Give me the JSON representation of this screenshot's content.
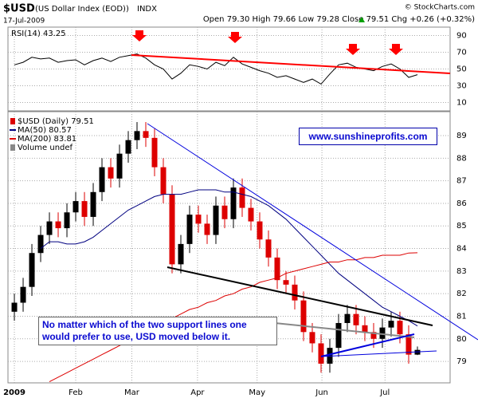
{
  "header": {
    "symbol": "$USD",
    "name": "(US Dollar Index (EOD))",
    "exchange": "INDX",
    "date": "17-Jul-2009",
    "copyright": "© StockCharts.com",
    "quote": "Open 79.30 High 79.66 Low 79.28 Close 79.51 Chg +0.26 (+0.32%)"
  },
  "chart_data": [
    {
      "type": "line",
      "xlim": [
        -0.73,
        49.73
      ],
      "ylim": [
        0,
        100
      ],
      "yticks": [
        10,
        30,
        50,
        70,
        90
      ],
      "grid": true,
      "series": [
        {
          "name": "RSI(14) 43.25",
          "color": "#000000",
          "values": [
            55,
            58,
            64,
            62,
            63,
            58,
            60,
            61,
            55,
            60,
            63,
            59,
            64,
            66,
            68,
            63,
            55,
            50,
            38,
            45,
            55,
            53,
            50,
            58,
            54,
            64,
            56,
            52,
            48,
            45,
            40,
            42,
            38,
            34,
            38,
            32,
            44,
            55,
            57,
            52,
            50,
            48,
            53,
            56,
            50,
            40,
            43.25
          ]
        }
      ]
    },
    {
      "type": "candlestick",
      "xlim": [
        -0.73,
        49.73
      ],
      "ylim": [
        78.05,
        90.06
      ],
      "grid": true,
      "yticks": [
        79,
        80,
        81,
        82,
        83,
        84,
        85,
        86,
        87,
        88,
        89
      ],
      "xticks": [
        {
          "value": 0,
          "label": "2009"
        },
        {
          "value": 7,
          "label": "Feb"
        },
        {
          "value": 13.4,
          "label": "Mar"
        },
        {
          "value": 20.9,
          "label": "Apr"
        },
        {
          "value": 27.7,
          "label": "May"
        },
        {
          "value": 35.1,
          "label": "Jun"
        },
        {
          "value": 42.3,
          "label": "Jul"
        }
      ],
      "name": "$USD (Daily) 79.51",
      "up_color": "#000000",
      "down_color": "#dd0000",
      "open": [
        81.2,
        81.6,
        82.3,
        83.8,
        84.6,
        85.2,
        84.9,
        85.6,
        86.1,
        85.4,
        86.5,
        87.6,
        87.1,
        88.2,
        88.8,
        89.2,
        88.9,
        87.6,
        86.4,
        83.3,
        84.2,
        85.5,
        85.1,
        84.6,
        85.9,
        85.3,
        86.7,
        85.8,
        85.2,
        84.4,
        83.6,
        82.6,
        82.4,
        81.7,
        80.3,
        79.8,
        78.9,
        79.6,
        80.7,
        81.1,
        80.6,
        80.3,
        80.0,
        80.5,
        80.8,
        80.2,
        79.3
      ],
      "high": [
        82.0,
        82.7,
        84.2,
        85.0,
        85.6,
        85.6,
        86.0,
        86.5,
        86.5,
        86.9,
        88.0,
        88.0,
        88.6,
        89.2,
        89.6,
        89.6,
        89.3,
        88.0,
        86.8,
        84.6,
        85.9,
        85.9,
        85.5,
        86.3,
        86.3,
        87.1,
        87.1,
        86.2,
        85.6,
        84.8,
        84.0,
        83.0,
        82.8,
        82.1,
        80.7,
        80.2,
        80.0,
        81.1,
        81.5,
        81.5,
        81.0,
        80.7,
        80.9,
        81.2,
        81.2,
        80.6,
        79.66
      ],
      "low": [
        80.8,
        81.2,
        81.9,
        83.4,
        84.2,
        84.5,
        84.5,
        85.2,
        85.0,
        85.0,
        86.1,
        86.7,
        86.7,
        87.8,
        88.4,
        88.5,
        87.2,
        86.0,
        82.9,
        82.9,
        83.8,
        84.7,
        84.2,
        84.2,
        84.9,
        84.9,
        85.4,
        84.8,
        84.0,
        83.2,
        82.2,
        82.0,
        81.3,
        79.9,
        79.4,
        78.5,
        78.5,
        79.2,
        80.3,
        80.2,
        79.9,
        79.6,
        79.6,
        80.1,
        79.8,
        78.9,
        79.28
      ],
      "close": [
        81.6,
        82.3,
        83.8,
        84.6,
        85.2,
        84.9,
        85.6,
        86.1,
        85.4,
        86.5,
        87.6,
        87.1,
        88.2,
        88.8,
        89.2,
        88.9,
        87.6,
        86.4,
        83.3,
        84.2,
        85.5,
        85.1,
        84.6,
        85.9,
        85.3,
        86.7,
        85.8,
        85.2,
        84.4,
        83.6,
        82.6,
        82.4,
        81.7,
        80.3,
        79.8,
        78.9,
        79.6,
        80.7,
        81.1,
        80.6,
        80.3,
        80.0,
        80.5,
        80.8,
        80.2,
        79.3,
        79.51
      ],
      "series": [
        {
          "name": "MA(50) 80.57",
          "color": "#000080",
          "values": [
            null,
            null,
            null,
            84.0,
            84.3,
            84.3,
            84.2,
            84.2,
            84.3,
            84.5,
            84.8,
            85.1,
            85.4,
            85.7,
            85.9,
            86.1,
            86.3,
            86.4,
            86.4,
            86.4,
            86.5,
            86.6,
            86.6,
            86.6,
            86.5,
            86.5,
            86.4,
            86.3,
            86.1,
            85.9,
            85.6,
            85.3,
            84.9,
            84.5,
            84.1,
            83.7,
            83.3,
            82.9,
            82.6,
            82.3,
            82.0,
            81.7,
            81.4,
            81.2,
            81.0,
            80.8,
            80.57
          ]
        },
        {
          "name": "MA(200) 83.81",
          "color": "#dd0000",
          "values": [
            null,
            null,
            null,
            null,
            78.1,
            78.3,
            78.5,
            78.7,
            78.9,
            79.1,
            79.3,
            79.5,
            79.7,
            79.9,
            80.1,
            80.3,
            80.5,
            80.7,
            80.9,
            81.1,
            81.3,
            81.4,
            81.6,
            81.7,
            81.9,
            82.0,
            82.2,
            82.3,
            82.5,
            82.6,
            82.7,
            82.9,
            83.0,
            83.1,
            83.2,
            83.3,
            83.4,
            83.4,
            83.5,
            83.5,
            83.6,
            83.6,
            83.7,
            83.7,
            83.7,
            83.8,
            83.81
          ]
        }
      ],
      "volume_label": "Volume undef",
      "annotations": [
        "www.sunshineprofits.com",
        "No matter which of the two support lines one would prefer to use, USD moved below it."
      ]
    }
  ]
}
